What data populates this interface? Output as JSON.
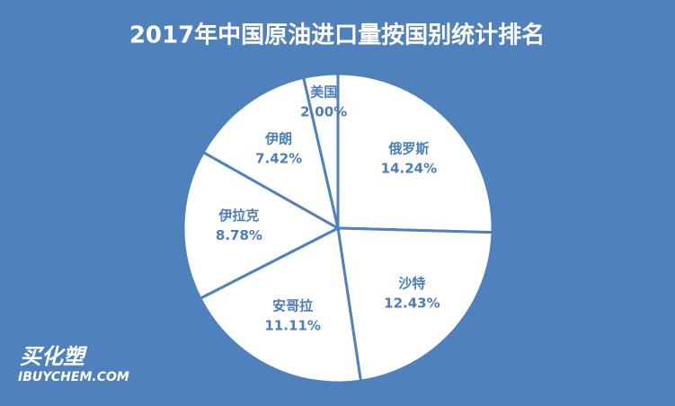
{
  "chart_data": {
    "type": "pie",
    "title": "2017年中国原油进口量按国别统计排名",
    "categories": [
      "俄罗斯",
      "沙特",
      "安哥拉",
      "伊拉克",
      "伊朗",
      "美国"
    ],
    "values": [
      14.24,
      12.43,
      11.11,
      8.78,
      7.42,
      2.0
    ],
    "value_labels": [
      "14.24%",
      "12.43%",
      "11.11%",
      "8.78%",
      "7.42%",
      "2.00%"
    ],
    "color": "#ffffff"
  },
  "watermark": {
    "brand": "买化塑",
    "site": "IBUYCHEM.COM"
  }
}
